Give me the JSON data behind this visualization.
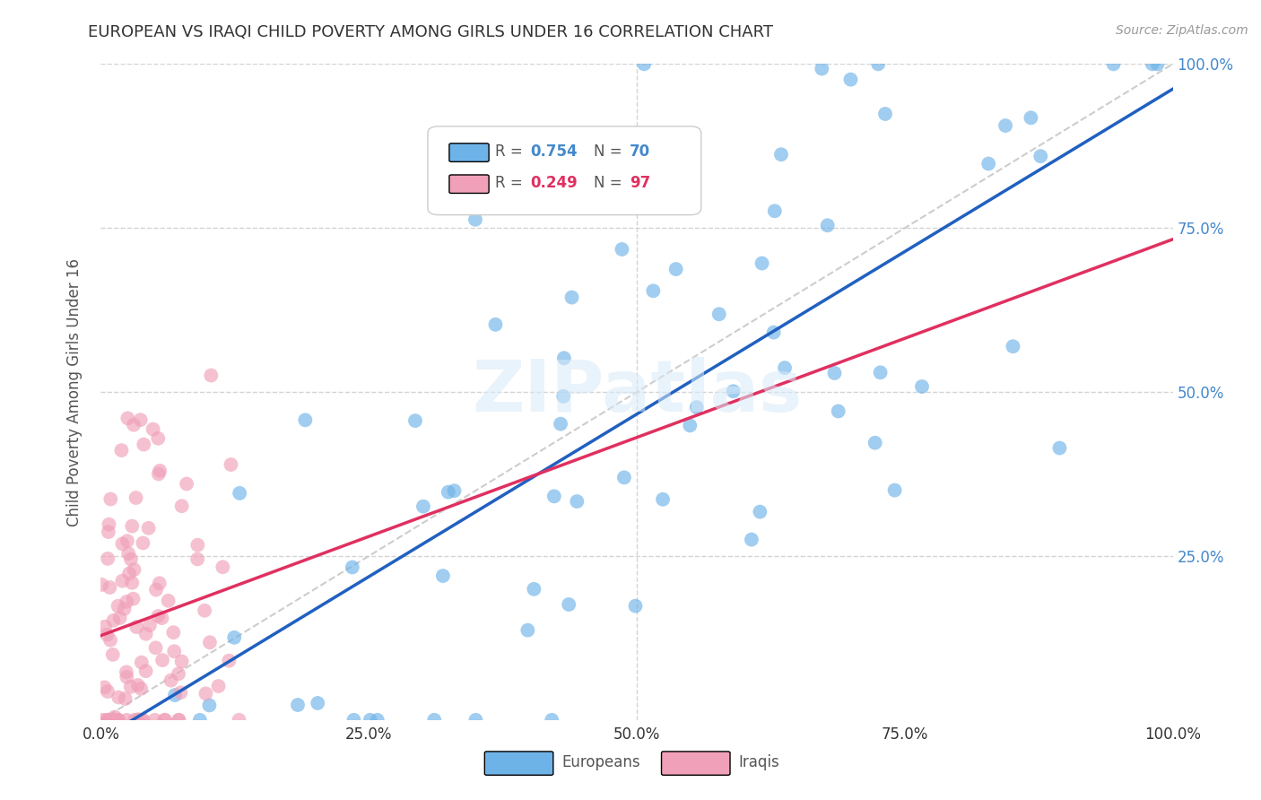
{
  "title": "EUROPEAN VS IRAQI CHILD POVERTY AMONG GIRLS UNDER 16 CORRELATION CHART",
  "source": "Source: ZipAtlas.com",
  "ylabel": "Child Poverty Among Girls Under 16",
  "xlim": [
    0,
    1
  ],
  "ylim": [
    0,
    1
  ],
  "xticklabels": [
    "0.0%",
    "25.0%",
    "50.0%",
    "75.0%",
    "100.0%"
  ],
  "right_yticklabels": [
    "25.0%",
    "50.0%",
    "75.0%",
    "100.0%"
  ],
  "watermark": "ZIPatlas",
  "legend_blue_r": "0.754",
  "legend_blue_n": "70",
  "legend_pink_r": "0.249",
  "legend_pink_n": "97",
  "blue_color": "#6eb3e8",
  "pink_color": "#f0a0b8",
  "blue_line_color": "#2060c0",
  "pink_line_color": "#e03060",
  "dashed_line_color": "#c8c8c8",
  "background_color": "#ffffff",
  "grid_color": "#d0d0d0",
  "title_color": "#333333",
  "axis_label_color": "#555555",
  "tick_label_color_right": "#4488cc",
  "tick_label_color_bottom": "#333333"
}
